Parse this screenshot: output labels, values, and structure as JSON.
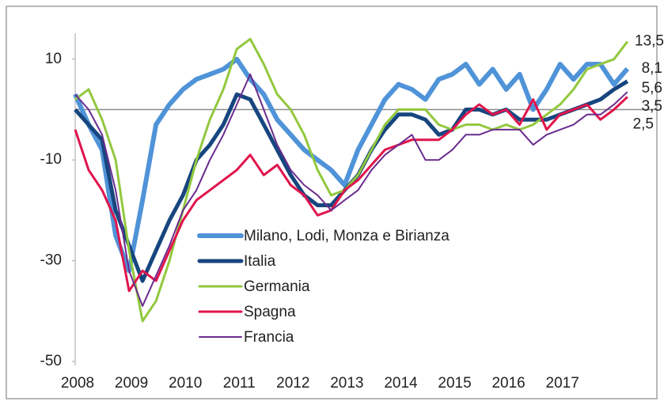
{
  "chart_data": {
    "type": "line",
    "x": [
      2008,
      2008.25,
      2008.5,
      2008.75,
      2009,
      2009.25,
      2009.5,
      2009.75,
      2010,
      2010.25,
      2010.5,
      2010.75,
      2011,
      2011.25,
      2011.5,
      2011.75,
      2012,
      2012.25,
      2012.5,
      2012.75,
      2013,
      2013.25,
      2013.5,
      2013.75,
      2014,
      2014.25,
      2014.5,
      2014.75,
      2015,
      2015.25,
      2015.5,
      2015.75,
      2016,
      2016.25,
      2016.5,
      2016.75,
      2017,
      2017.25,
      2017.5,
      2017.75,
      2018,
      2018.25
    ],
    "xlim": [
      2008,
      2018.4
    ],
    "xticks": [
      2008,
      2009,
      2010,
      2011,
      2012,
      2013,
      2014,
      2015,
      2016,
      2017
    ],
    "ylim": [
      -50,
      15
    ],
    "yticks": [
      -50,
      -30,
      -10,
      10
    ],
    "legend": "center",
    "series": [
      {
        "name": "Milano, Lodi, Monza e Birianza",
        "color": "#4f93d8",
        "line_width": 6,
        "values": [
          3,
          -3,
          -8,
          -25,
          -32,
          -18,
          -3,
          1,
          4,
          6,
          7,
          8,
          10,
          6,
          3,
          -2,
          -5,
          -8,
          -10,
          -12,
          -15,
          -8,
          -3,
          2,
          5,
          4,
          2,
          6,
          7,
          9,
          5,
          8,
          4,
          7,
          0,
          4,
          9,
          6,
          9,
          9,
          5,
          8.1
        ],
        "value_labels": [
          null,
          null,
          null,
          null,
          null,
          null,
          null,
          null,
          null,
          null,
          null,
          null,
          null,
          null,
          null,
          null,
          null,
          null,
          null,
          null,
          null,
          null,
          null,
          null,
          null,
          null,
          null,
          null,
          null,
          null,
          null,
          null,
          null,
          null,
          null,
          null,
          null,
          null,
          null,
          null,
          null,
          "8,1"
        ]
      },
      {
        "name": "Italia",
        "color": "#17467f",
        "line_width": 5,
        "values": [
          0,
          -3,
          -6,
          -20,
          -27,
          -34,
          -28,
          -22,
          -17,
          -10,
          -7,
          -3,
          3,
          2,
          -3,
          -8,
          -13,
          -17,
          -19,
          -19,
          -16,
          -13,
          -8,
          -4,
          -1,
          -1,
          -2,
          -5,
          -4,
          0,
          0,
          -1,
          0,
          -2,
          -2,
          -2,
          -1,
          0,
          1,
          2,
          4,
          5.6
        ],
        "value_labels": [
          null,
          null,
          null,
          null,
          null,
          null,
          null,
          null,
          null,
          null,
          null,
          null,
          null,
          null,
          null,
          null,
          null,
          null,
          null,
          null,
          null,
          null,
          null,
          null,
          null,
          null,
          null,
          null,
          null,
          null,
          null,
          null,
          null,
          null,
          null,
          null,
          null,
          null,
          null,
          null,
          null,
          "5,6"
        ]
      },
      {
        "name": "Germania",
        "color": "#92c83e",
        "line_width": 3,
        "values": [
          2,
          4,
          -2,
          -10,
          -28,
          -42,
          -38,
          -30,
          -20,
          -10,
          -2,
          4,
          12,
          14,
          9,
          3,
          0,
          -5,
          -12,
          -17,
          -16,
          -13,
          -8,
          -3,
          0,
          0,
          0,
          -3,
          -4,
          -3,
          -3,
          -4,
          -3,
          -4,
          -3,
          -1,
          1,
          4,
          8,
          9,
          10,
          13.5
        ],
        "value_labels": [
          null,
          null,
          null,
          null,
          null,
          null,
          null,
          null,
          null,
          null,
          null,
          null,
          null,
          null,
          null,
          null,
          null,
          null,
          null,
          null,
          null,
          null,
          null,
          null,
          null,
          null,
          null,
          null,
          null,
          null,
          null,
          null,
          null,
          null,
          null,
          null,
          null,
          null,
          null,
          null,
          null,
          "13,5"
        ]
      },
      {
        "name": "Spagna",
        "color": "#e0144c",
        "line_width": 3,
        "values": [
          -4,
          -12,
          -16,
          -22,
          -36,
          -32,
          -34,
          -28,
          -22,
          -18,
          -16,
          -14,
          -12,
          -9,
          -13,
          -11,
          -15,
          -17,
          -21,
          -20,
          -16,
          -14,
          -11,
          -8,
          -7,
          -6,
          -6,
          -6,
          -4,
          -1,
          1,
          -1,
          0,
          -3,
          2,
          -4,
          -1,
          0,
          1,
          -2,
          0,
          2.5
        ],
        "value_labels": [
          null,
          null,
          null,
          null,
          null,
          null,
          null,
          null,
          null,
          null,
          null,
          null,
          null,
          null,
          null,
          null,
          null,
          null,
          null,
          null,
          null,
          null,
          null,
          null,
          null,
          null,
          null,
          null,
          null,
          null,
          null,
          null,
          null,
          null,
          null,
          null,
          null,
          null,
          null,
          null,
          null,
          "2,5"
        ]
      },
      {
        "name": "Francia",
        "color": "#6a2c8e",
        "line_width": 2,
        "values": [
          3,
          0,
          -5,
          -16,
          -32,
          -39,
          -33,
          -27,
          -20,
          -16,
          -10,
          -5,
          1,
          7,
          0,
          -7,
          -12,
          -15,
          -17,
          -20,
          -18,
          -16,
          -12,
          -9,
          -7,
          -5,
          -10,
          -10,
          -8,
          -5,
          -5,
          -4,
          -4,
          -4,
          -7,
          -5,
          -4,
          -3,
          -1,
          -1,
          1,
          3.5
        ],
        "value_labels": [
          null,
          null,
          null,
          null,
          null,
          null,
          null,
          null,
          null,
          null,
          null,
          null,
          null,
          null,
          null,
          null,
          null,
          null,
          null,
          null,
          null,
          null,
          null,
          null,
          null,
          null,
          null,
          null,
          null,
          null,
          null,
          null,
          null,
          null,
          null,
          null,
          null,
          null,
          null,
          null,
          null,
          "3,5"
        ]
      }
    ]
  }
}
